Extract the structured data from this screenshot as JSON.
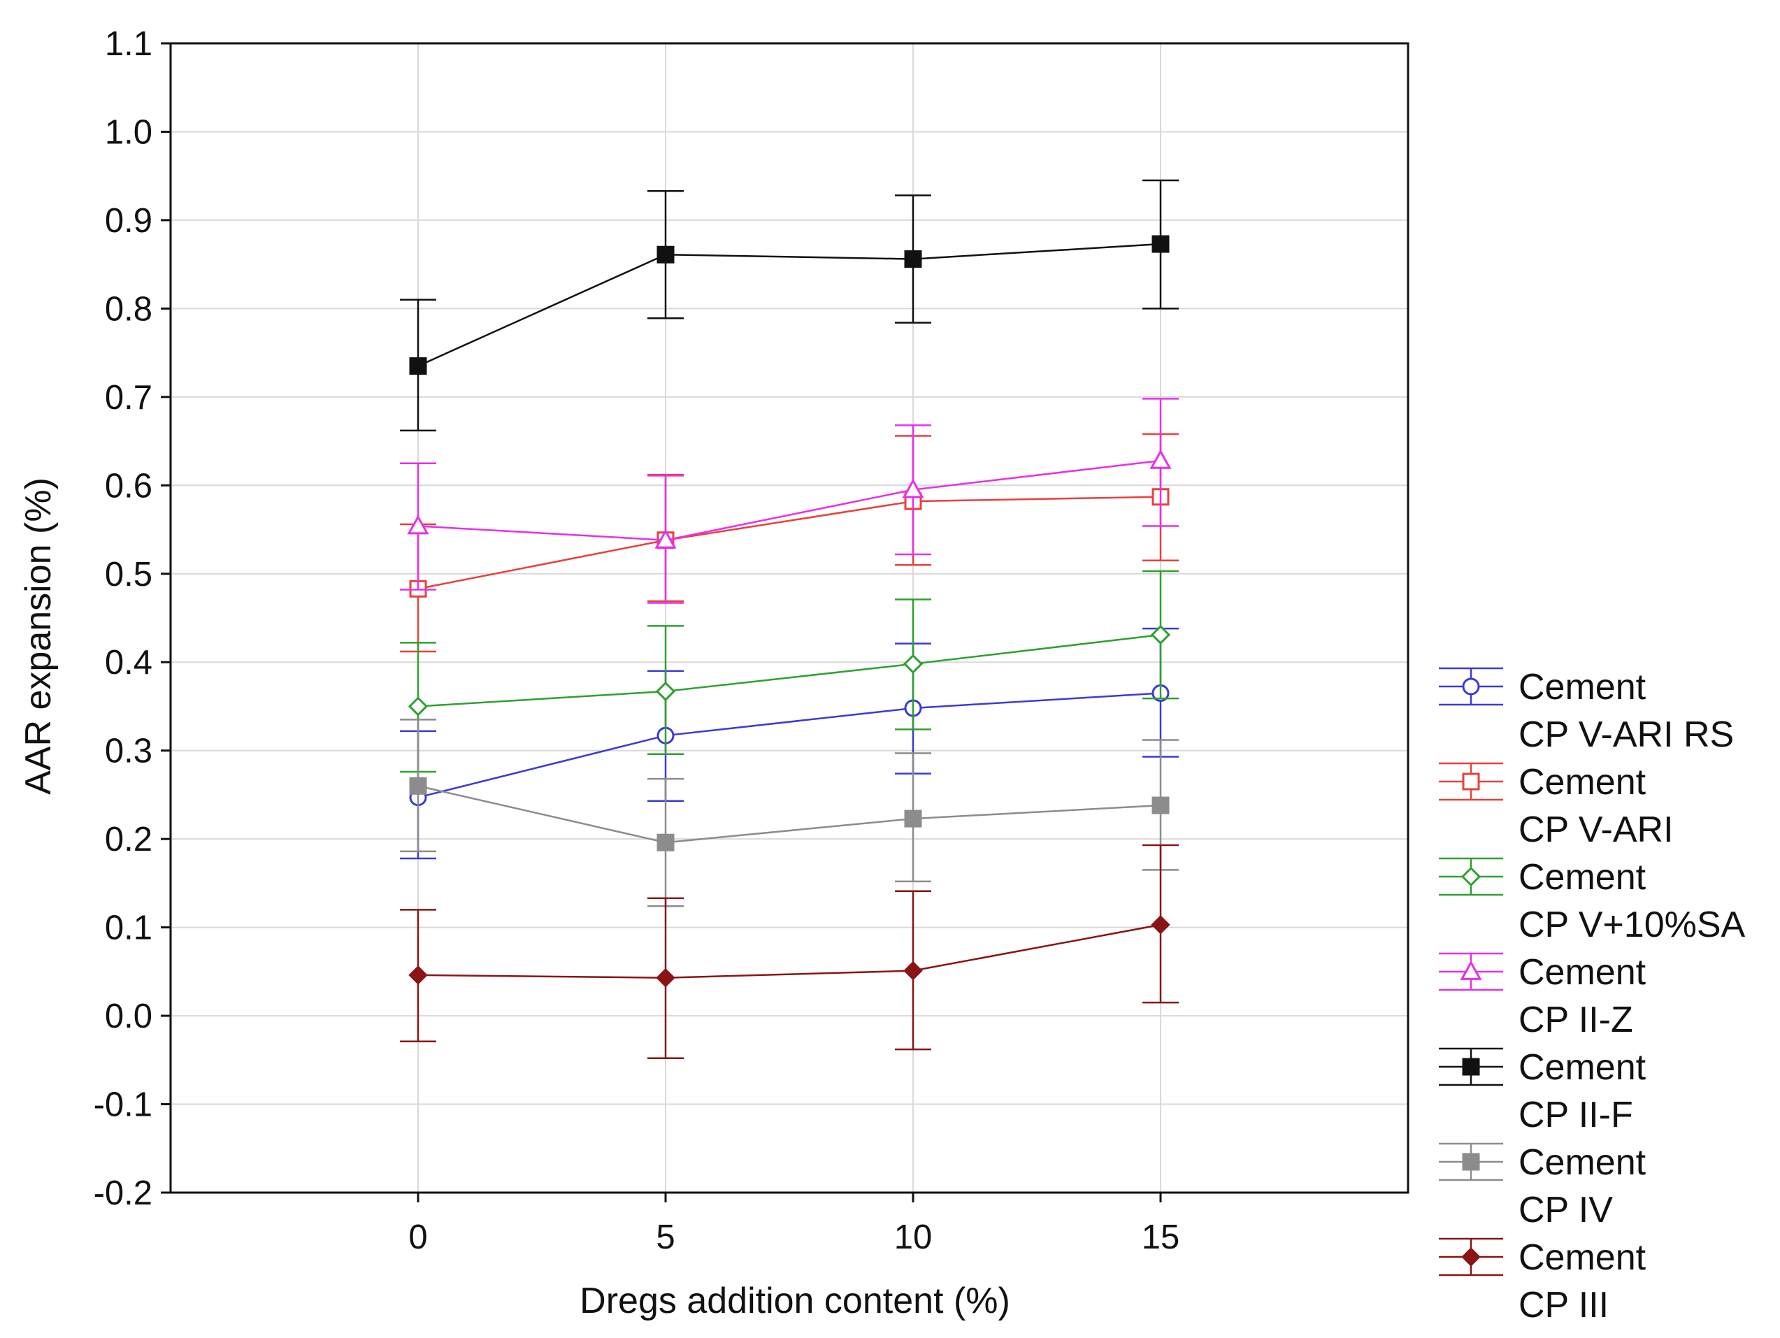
{
  "chart_data": {
    "type": "line",
    "title": "",
    "xlabel": "Dregs addition content (%)",
    "ylabel": "AAR expansion (%)",
    "x": [
      0,
      5,
      10,
      15
    ],
    "x_tick_labels": [
      "0",
      "5",
      "10",
      "15"
    ],
    "xlim": [
      -5,
      20
    ],
    "ylim": [
      -0.2,
      1.1
    ],
    "y_tick_labels": [
      "-0.2",
      "-0.1",
      "0.0",
      "0.1",
      "0.2",
      "0.3",
      "0.4",
      "0.5",
      "0.6",
      "0.7",
      "0.8",
      "0.9",
      "1.0",
      "1.1"
    ],
    "grid": true,
    "legend_position": "right",
    "series": [
      {
        "name": "Cement CP V-ARI RS",
        "legend_lines": [
          "Cement",
          "CP V-ARI RS"
        ],
        "color": "#3b3bd6",
        "marker": "circle-open",
        "values": [
          0.247,
          0.317,
          0.348,
          0.365
        ],
        "err_upper": [
          0.322,
          0.39,
          0.421,
          0.438
        ],
        "err_lower": [
          0.178,
          0.243,
          0.274,
          0.293
        ]
      },
      {
        "name": "Cement CP V-ARI",
        "legend_lines": [
          "Cement",
          "CP V-ARI"
        ],
        "color": "#e8403c",
        "marker": "square-open",
        "values": [
          0.483,
          0.538,
          0.582,
          0.587
        ],
        "err_upper": [
          0.556,
          0.612,
          0.656,
          0.658
        ],
        "err_lower": [
          0.412,
          0.469,
          0.51,
          0.515
        ]
      },
      {
        "name": "Cement CP V+10%SA",
        "legend_lines": [
          "Cement",
          "CP V+10%SA"
        ],
        "color": "#30a030",
        "marker": "diamond-open",
        "values": [
          0.35,
          0.367,
          0.398,
          0.431
        ],
        "err_upper": [
          0.422,
          0.441,
          0.471,
          0.503
        ],
        "err_lower": [
          0.276,
          0.296,
          0.324,
          0.359
        ]
      },
      {
        "name": "Cement CP II-Z",
        "legend_lines": [
          "Cement",
          "CP II-Z"
        ],
        "color": "#e830e8",
        "marker": "triangle-open",
        "values": [
          0.554,
          0.538,
          0.595,
          0.628
        ],
        "err_upper": [
          0.625,
          0.611,
          0.668,
          0.698
        ],
        "err_lower": [
          0.482,
          0.467,
          0.522,
          0.554
        ]
      },
      {
        "name": "Cement CP II-F",
        "legend_lines": [
          "Cement",
          "CP II-F"
        ],
        "color": "#111111",
        "marker": "square-filled",
        "values": [
          0.735,
          0.861,
          0.856,
          0.873
        ],
        "err_upper": [
          0.81,
          0.933,
          0.928,
          0.945
        ],
        "err_lower": [
          0.662,
          0.789,
          0.784,
          0.8
        ]
      },
      {
        "name": "Cement CP IV",
        "legend_lines": [
          "Cement",
          "CP IV"
        ],
        "color": "#8c8c8c",
        "marker": "square-filled",
        "values": [
          0.26,
          0.196,
          0.223,
          0.238
        ],
        "err_upper": [
          0.335,
          0.268,
          0.297,
          0.312
        ],
        "err_lower": [
          0.186,
          0.124,
          0.152,
          0.165
        ]
      },
      {
        "name": "Cement CP III",
        "legend_lines": [
          "Cement",
          "CP III"
        ],
        "color": "#8b1414",
        "marker": "diamond-filled",
        "values": [
          0.046,
          0.043,
          0.051,
          0.103
        ],
        "err_upper": [
          0.12,
          0.133,
          0.141,
          0.193
        ],
        "err_lower": [
          -0.029,
          -0.048,
          -0.038,
          0.015
        ]
      }
    ]
  }
}
